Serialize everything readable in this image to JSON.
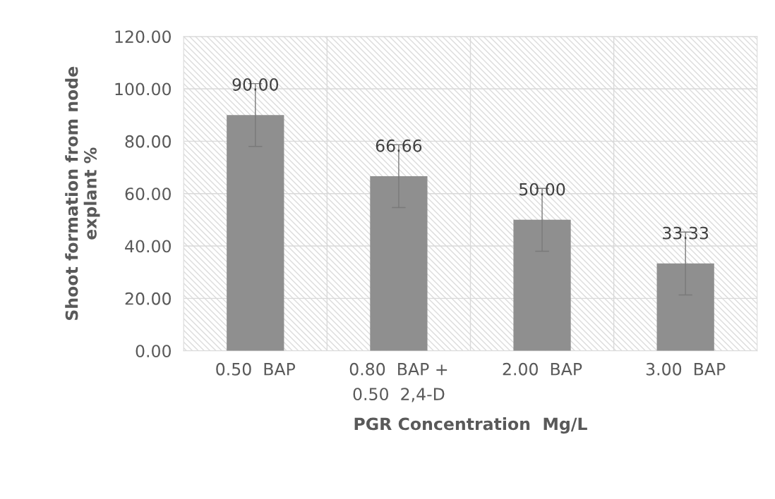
{
  "chart_data": {
    "type": "bar",
    "xlabel": "PGR Concentration  Mg/L",
    "ylabel": "Shoot formation from node\nexplant %",
    "categories": [
      "0.50  BAP",
      "0.80  BAP +\n0.50  2,4-D",
      "2.00  BAP",
      "3.00  BAP"
    ],
    "values": [
      90.0,
      66.66,
      50.0,
      33.33
    ],
    "errors": [
      12,
      12,
      12,
      12
    ],
    "color": "#8f8f8f",
    "value_labels": [
      "90.00",
      "66.66",
      "50.00",
      "33.33"
    ],
    "ylim": [
      0,
      120
    ],
    "yticks": [
      {
        "value": 0,
        "label": "0.00"
      },
      {
        "value": 20,
        "label": "20.00"
      },
      {
        "value": 40,
        "label": "40.00"
      },
      {
        "value": 60,
        "label": "60.00"
      },
      {
        "value": 80,
        "label": "80.00"
      },
      {
        "value": 100,
        "label": "100.00"
      },
      {
        "value": 120,
        "label": "120.00"
      }
    ],
    "grid": true
  }
}
